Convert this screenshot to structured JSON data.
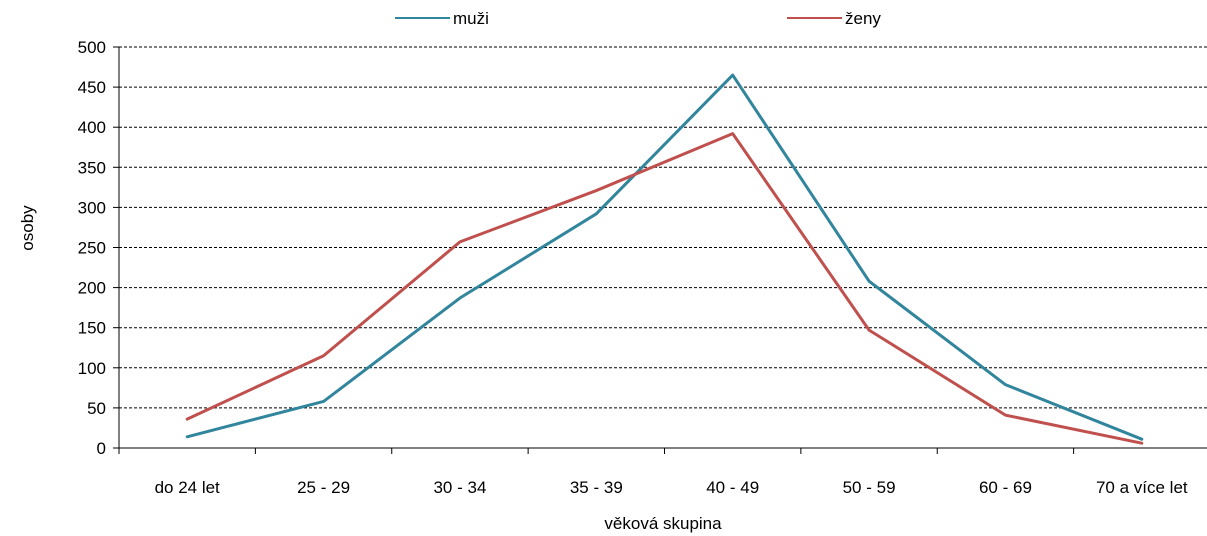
{
  "chart_data": {
    "type": "line",
    "xlabel": "věková skupina",
    "ylabel": "osoby",
    "categories": [
      "do 24 let",
      "25 - 29",
      "30 - 34",
      "35 - 39",
      "40 - 49",
      "50 - 59",
      "60 - 69",
      "70 a více let"
    ],
    "ylim": [
      0,
      500
    ],
    "yticks": [
      0,
      50,
      100,
      150,
      200,
      250,
      300,
      350,
      400,
      450,
      500
    ],
    "grid": true,
    "legend_position": "top",
    "series": [
      {
        "name": "muži",
        "color": "#31859c",
        "values": [
          14,
          58,
          187,
          292,
          465,
          208,
          79,
          11
        ]
      },
      {
        "name": "ženy",
        "color": "#c0504d",
        "values": [
          36,
          115,
          257,
          321,
          392,
          147,
          41,
          6
        ]
      }
    ]
  }
}
